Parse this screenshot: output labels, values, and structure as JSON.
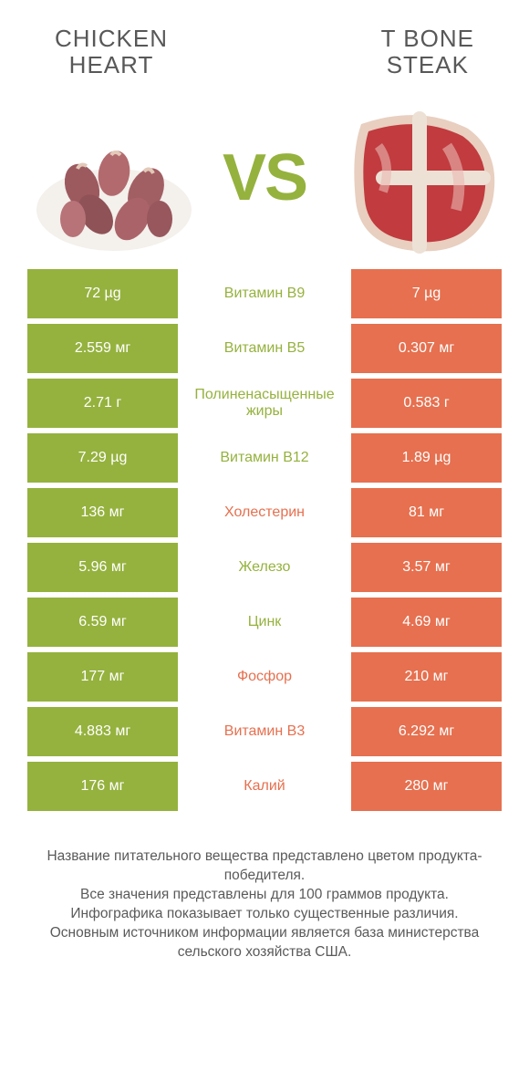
{
  "colors": {
    "green": "#95b23e",
    "orange": "#e6704f",
    "text": "#575757",
    "white": "#ffffff"
  },
  "header": {
    "left_title": "CHICKEN\nHEART",
    "right_title": "T BONE\nSTEAK",
    "vs_label": "VS"
  },
  "rows": [
    {
      "left": "72 µg",
      "mid": "Витамин B9",
      "right": "7 µg",
      "winner": "left"
    },
    {
      "left": "2.559 мг",
      "mid": "Витамин B5",
      "right": "0.307 мг",
      "winner": "left"
    },
    {
      "left": "2.71 г",
      "mid": "Полиненасыщенные жиры",
      "right": "0.583 г",
      "winner": "left"
    },
    {
      "left": "7.29 µg",
      "mid": "Витамин B12",
      "right": "1.89 µg",
      "winner": "left"
    },
    {
      "left": "136 мг",
      "mid": "Холестерин",
      "right": "81 мг",
      "winner": "right"
    },
    {
      "left": "5.96 мг",
      "mid": "Железо",
      "right": "3.57 мг",
      "winner": "left"
    },
    {
      "left": "6.59 мг",
      "mid": "Цинк",
      "right": "4.69 мг",
      "winner": "left"
    },
    {
      "left": "177 мг",
      "mid": "Фосфор",
      "right": "210 мг",
      "winner": "right"
    },
    {
      "left": "4.883 мг",
      "mid": "Витамин B3",
      "right": "6.292 мг",
      "winner": "right"
    },
    {
      "left": "176 мг",
      "mid": "Калий",
      "right": "280 мг",
      "winner": "right"
    }
  ],
  "footer_text": "Название питательного вещества представлено цветом продукта-победителя.\nВсе значения представлены для 100 граммов продукта.\nИнфографика показывает только существенные различия.\nОсновным источником информации является база министерства сельского хозяйства США."
}
